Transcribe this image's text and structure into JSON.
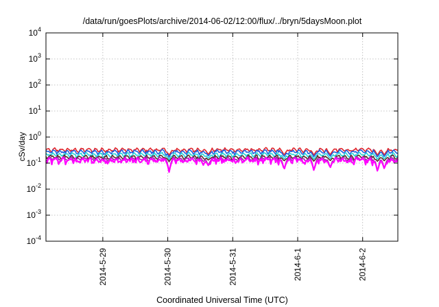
{
  "chart_data": {
    "type": "line",
    "title": "/data/run/goesPlots/archive/2014-06-02/12:00/flux/../bryn/5daysMoon.plot",
    "xlabel": "Coordinated Universal Time (UTC)",
    "ylabel": "cSv/day",
    "yscale": "log",
    "ylim": [
      0.0001,
      10000
    ],
    "y_ticks": [
      {
        "value": 0.0001,
        "base": "10",
        "exp": "-4"
      },
      {
        "value": 0.001,
        "base": "10",
        "exp": "-3"
      },
      {
        "value": 0.01,
        "base": "10",
        "exp": "-2"
      },
      {
        "value": 0.1,
        "base": "10",
        "exp": "-1"
      },
      {
        "value": 1,
        "base": "10",
        "exp": "0"
      },
      {
        "value": 10,
        "base": "10",
        "exp": "1"
      },
      {
        "value": 100,
        "base": "10",
        "exp": "2"
      },
      {
        "value": 1000,
        "base": "10",
        "exp": "3"
      },
      {
        "value": 10000,
        "base": "10",
        "exp": "4"
      }
    ],
    "xlim": [
      "2014-05-28 03:00",
      "2014-06-02 13:00"
    ],
    "x_ticks": [
      {
        "label": "2014-5-29",
        "value": "2014-05-29 00:00"
      },
      {
        "label": "2014-5-30",
        "value": "2014-05-30 00:00"
      },
      {
        "label": "2014-5-31",
        "value": "2014-05-31 00:00"
      },
      {
        "label": "2014-6-1",
        "value": "2014-06-01 00:00"
      },
      {
        "label": "2014-6-2",
        "value": "2014-06-02 00:00"
      }
    ],
    "grid": true,
    "legend": "none",
    "series": [
      {
        "color": "#e0232a",
        "level": 0.32,
        "spread": 0.07
      },
      {
        "color": "#1f5fe0",
        "level": 0.27,
        "spread": 0.07
      },
      {
        "color": "#26d3d8",
        "level": 0.21,
        "spread": 0.05
      },
      {
        "color": "#5a2a2a",
        "level": 0.17,
        "spread": 0.04
      },
      {
        "color": "#9a2aa8",
        "level": 0.145,
        "spread": 0.04
      },
      {
        "color": "#ff00ff",
        "level": 0.125,
        "spread": 0.06
      }
    ],
    "dips": [
      {
        "x": "2014-05-30 00:30",
        "value": 0.045
      },
      {
        "x": "2014-05-30 15:00",
        "value": 0.08
      },
      {
        "x": "2014-05-31 19:00",
        "value": 0.055
      },
      {
        "x": "2014-06-01 06:00",
        "value": 0.05
      },
      {
        "x": "2014-06-01 12:00",
        "value": 0.065
      },
      {
        "x": "2014-06-02 05:30",
        "value": 0.045
      },
      {
        "x": "2014-06-02 08:00",
        "value": 0.06
      }
    ]
  }
}
